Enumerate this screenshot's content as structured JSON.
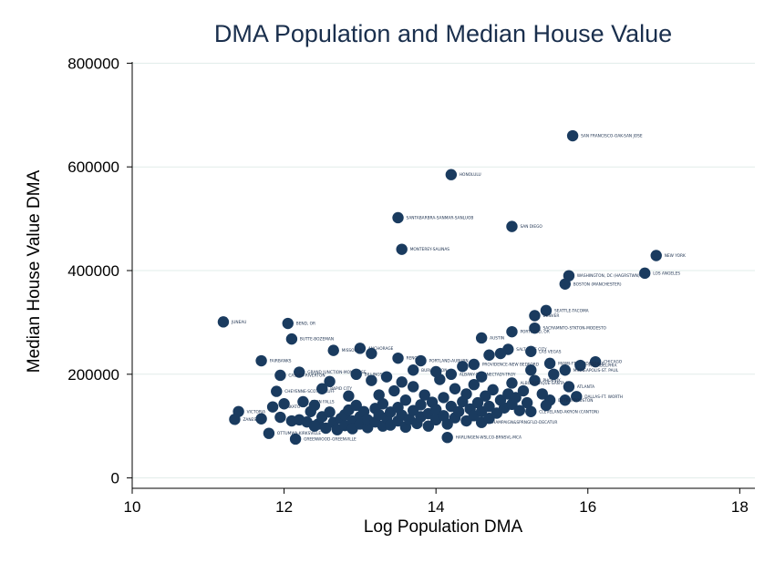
{
  "chart_data": {
    "type": "scatter",
    "title": "DMA Population and Median House Value",
    "xlabel": "Log Population DMA",
    "ylabel": "Median House Value DMA",
    "xlim": [
      10,
      18.2
    ],
    "ylim": [
      -20000,
      820000
    ],
    "xticks": [
      10,
      12,
      14,
      16,
      18
    ],
    "yticks": [
      0,
      200000,
      400000,
      600000,
      800000
    ],
    "grid": "horizontal",
    "colors": {
      "marker": "#1a3b5f",
      "text": "#1a2f4d",
      "grid": "#e1ece9"
    },
    "points": [
      {
        "x": 15.8,
        "y": 660000,
        "label": "SAN FRANCISCO-OAK-SAN JOSE"
      },
      {
        "x": 14.2,
        "y": 585000,
        "label": "HONOLULU"
      },
      {
        "x": 13.5,
        "y": 502000,
        "label": "SANTABARBRA-SANMAR-SANLUOB"
      },
      {
        "x": 15.0,
        "y": 485000,
        "label": "SAN DIEGO"
      },
      {
        "x": 13.55,
        "y": 441000,
        "label": "MONTEREY-SALINAS"
      },
      {
        "x": 16.9,
        "y": 429000,
        "label": "NEW YORK"
      },
      {
        "x": 16.75,
        "y": 395000,
        "label": "LOS ANGELES"
      },
      {
        "x": 15.75,
        "y": 390000,
        "label": "WASHINGTON, DC (HAGRSTWN)"
      },
      {
        "x": 15.7,
        "y": 374000,
        "label": "BOSTON (MANCHESTER)"
      },
      {
        "x": 15.45,
        "y": 323000,
        "label": "SEATTLE-TACOMA"
      },
      {
        "x": 15.3,
        "y": 313000,
        "label": "DENVER"
      },
      {
        "x": 11.2,
        "y": 301000,
        "label": "JUNEAU"
      },
      {
        "x": 12.05,
        "y": 298000,
        "label": "BEND, OR"
      },
      {
        "x": 15.3,
        "y": 289000,
        "label": "SACRAMNTO-STKTON-MODESTO"
      },
      {
        "x": 15.0,
        "y": 282000,
        "label": "PORTLAND, OR"
      },
      {
        "x": 12.1,
        "y": 268000,
        "label": "BUTTE-BOZEMAN"
      },
      {
        "x": 14.6,
        "y": 270000,
        "label": "AUSTIN"
      },
      {
        "x": 13.0,
        "y": 250000,
        "label": "ANCHORAGE"
      },
      {
        "x": 12.65,
        "y": 246000,
        "label": "MISSOULA"
      },
      {
        "x": 14.95,
        "y": 248000,
        "label": "SALT LAKE CITY"
      },
      {
        "x": 15.25,
        "y": 244000,
        "label": "LAS VEGAS"
      },
      {
        "x": 11.7,
        "y": 226000,
        "label": "FAIRBANKS"
      },
      {
        "x": 16.1,
        "y": 224000,
        "label": "CHICAGO"
      },
      {
        "x": 15.5,
        "y": 221000,
        "label": "MIAMI-FT. LAUDERDALE"
      },
      {
        "x": 15.9,
        "y": 217000,
        "label": "PHILADELPHIA"
      },
      {
        "x": 15.7,
        "y": 208000,
        "label": "MINNEAPOLIS-ST. PAUL"
      },
      {
        "x": 13.8,
        "y": 226000,
        "label": "PORTLAND-AUBURN"
      },
      {
        "x": 14.5,
        "y": 219000,
        "label": "PROVIDENCE-NEW BEDFORD"
      },
      {
        "x": 13.5,
        "y": 231000,
        "label": "RENO"
      },
      {
        "x": 14.2,
        "y": 200000,
        "label": "ALBANY-SCHENECTADY-TROY"
      },
      {
        "x": 13.7,
        "y": 208000,
        "label": "BURLINGTON"
      },
      {
        "x": 12.2,
        "y": 204000,
        "label": "GRAND JUNCTION-MONTROSE"
      },
      {
        "x": 11.95,
        "y": 198000,
        "label": "CASPER-RIVERTON"
      },
      {
        "x": 12.95,
        "y": 200000,
        "label": "BILLINGS"
      },
      {
        "x": 15.3,
        "y": 188000,
        "label": "PHOENIX"
      },
      {
        "x": 15.0,
        "y": 183000,
        "label": "ALBUQUERQUE-SANTA FE"
      },
      {
        "x": 15.75,
        "y": 176000,
        "label": "ATLANTA"
      },
      {
        "x": 11.9,
        "y": 167000,
        "label": "CHEYENNE-SCOTTSBLUFF"
      },
      {
        "x": 12.5,
        "y": 172000,
        "label": "RAPID CITY"
      },
      {
        "x": 15.85,
        "y": 157000,
        "label": "DALLAS-FT. WORTH"
      },
      {
        "x": 15.7,
        "y": 150000,
        "label": "HOUSTON"
      },
      {
        "x": 15.5,
        "y": 150000,
        "label": "DETROIT"
      },
      {
        "x": 12.25,
        "y": 147000,
        "label": "TWIN FALLS"
      },
      {
        "x": 11.85,
        "y": 137000,
        "label": "MANKATO"
      },
      {
        "x": 11.4,
        "y": 128000,
        "label": "VICTORIA"
      },
      {
        "x": 15.25,
        "y": 128000,
        "label": "CLEVELAND-AKRON (CANTON)"
      },
      {
        "x": 11.35,
        "y": 113000,
        "label": "ZANESVILLE"
      },
      {
        "x": 14.6,
        "y": 107000,
        "label": "CHAMPAIGN&SPRNGFLD-DECATUR"
      },
      {
        "x": 11.8,
        "y": 86000,
        "label": "OTTUMWA-KIRKSVILLE"
      },
      {
        "x": 12.15,
        "y": 75000,
        "label": "GREENWOOD-GREENVILLE"
      },
      {
        "x": 14.15,
        "y": 78000,
        "label": "HARLINGEN-WSLCO-BRNSVL-MCA"
      },
      {
        "x": 11.7,
        "y": 114000,
        "label": ""
      },
      {
        "x": 11.95,
        "y": 117000,
        "label": ""
      },
      {
        "x": 12.1,
        "y": 110000,
        "label": ""
      },
      {
        "x": 12.2,
        "y": 112000,
        "label": ""
      },
      {
        "x": 12.3,
        "y": 108000,
        "label": ""
      },
      {
        "x": 12.45,
        "y": 104000,
        "label": ""
      },
      {
        "x": 12.5,
        "y": 118000,
        "label": ""
      },
      {
        "x": 12.55,
        "y": 96000,
        "label": ""
      },
      {
        "x": 12.6,
        "y": 127000,
        "label": ""
      },
      {
        "x": 12.65,
        "y": 107000,
        "label": ""
      },
      {
        "x": 12.7,
        "y": 93000,
        "label": ""
      },
      {
        "x": 12.75,
        "y": 115000,
        "label": ""
      },
      {
        "x": 12.8,
        "y": 122000,
        "label": ""
      },
      {
        "x": 12.8,
        "y": 101000,
        "label": ""
      },
      {
        "x": 12.85,
        "y": 131000,
        "label": ""
      },
      {
        "x": 12.9,
        "y": 110000,
        "label": ""
      },
      {
        "x": 12.9,
        "y": 95000,
        "label": ""
      },
      {
        "x": 12.95,
        "y": 140000,
        "label": ""
      },
      {
        "x": 13.0,
        "y": 118000,
        "label": ""
      },
      {
        "x": 13.0,
        "y": 104000,
        "label": ""
      },
      {
        "x": 13.05,
        "y": 128000,
        "label": ""
      },
      {
        "x": 13.1,
        "y": 97000,
        "label": ""
      },
      {
        "x": 13.1,
        "y": 112000,
        "label": ""
      },
      {
        "x": 13.15,
        "y": 188000,
        "label": ""
      },
      {
        "x": 13.2,
        "y": 134000,
        "label": ""
      },
      {
        "x": 13.2,
        "y": 108000,
        "label": ""
      },
      {
        "x": 13.25,
        "y": 122000,
        "label": ""
      },
      {
        "x": 13.3,
        "y": 100000,
        "label": ""
      },
      {
        "x": 13.3,
        "y": 143000,
        "label": ""
      },
      {
        "x": 13.35,
        "y": 116000,
        "label": ""
      },
      {
        "x": 13.4,
        "y": 127000,
        "label": ""
      },
      {
        "x": 13.4,
        "y": 102000,
        "label": ""
      },
      {
        "x": 13.45,
        "y": 168000,
        "label": ""
      },
      {
        "x": 13.5,
        "y": 110000,
        "label": ""
      },
      {
        "x": 13.5,
        "y": 136000,
        "label": ""
      },
      {
        "x": 13.55,
        "y": 121000,
        "label": ""
      },
      {
        "x": 13.6,
        "y": 150000,
        "label": ""
      },
      {
        "x": 13.6,
        "y": 98000,
        "label": ""
      },
      {
        "x": 13.65,
        "y": 113000,
        "label": ""
      },
      {
        "x": 13.7,
        "y": 130000,
        "label": ""
      },
      {
        "x": 13.7,
        "y": 176000,
        "label": ""
      },
      {
        "x": 13.75,
        "y": 105000,
        "label": ""
      },
      {
        "x": 13.8,
        "y": 141000,
        "label": ""
      },
      {
        "x": 13.8,
        "y": 118000,
        "label": ""
      },
      {
        "x": 13.85,
        "y": 160000,
        "label": ""
      },
      {
        "x": 13.9,
        "y": 124000,
        "label": ""
      },
      {
        "x": 13.9,
        "y": 100000,
        "label": ""
      },
      {
        "x": 13.95,
        "y": 146000,
        "label": ""
      },
      {
        "x": 14.0,
        "y": 112000,
        "label": ""
      },
      {
        "x": 14.0,
        "y": 132000,
        "label": ""
      },
      {
        "x": 14.05,
        "y": 190000,
        "label": ""
      },
      {
        "x": 14.1,
        "y": 120000,
        "label": ""
      },
      {
        "x": 14.1,
        "y": 155000,
        "label": ""
      },
      {
        "x": 14.15,
        "y": 104000,
        "label": ""
      },
      {
        "x": 14.2,
        "y": 138000,
        "label": ""
      },
      {
        "x": 14.25,
        "y": 116000,
        "label": ""
      },
      {
        "x": 14.25,
        "y": 172000,
        "label": ""
      },
      {
        "x": 14.3,
        "y": 128000,
        "label": ""
      },
      {
        "x": 14.35,
        "y": 147000,
        "label": ""
      },
      {
        "x": 14.4,
        "y": 110000,
        "label": ""
      },
      {
        "x": 14.4,
        "y": 162000,
        "label": ""
      },
      {
        "x": 14.45,
        "y": 133000,
        "label": ""
      },
      {
        "x": 14.5,
        "y": 120000,
        "label": ""
      },
      {
        "x": 14.5,
        "y": 180000,
        "label": ""
      },
      {
        "x": 14.55,
        "y": 145000,
        "label": ""
      },
      {
        "x": 14.6,
        "y": 128000,
        "label": ""
      },
      {
        "x": 14.65,
        "y": 158000,
        "label": ""
      },
      {
        "x": 14.7,
        "y": 115000,
        "label": ""
      },
      {
        "x": 14.7,
        "y": 138000,
        "label": ""
      },
      {
        "x": 14.75,
        "y": 170000,
        "label": ""
      },
      {
        "x": 14.8,
        "y": 125000,
        "label": ""
      },
      {
        "x": 14.85,
        "y": 150000,
        "label": ""
      },
      {
        "x": 14.9,
        "y": 135000,
        "label": ""
      },
      {
        "x": 14.95,
        "y": 162000,
        "label": ""
      },
      {
        "x": 15.0,
        "y": 142000,
        "label": ""
      },
      {
        "x": 15.05,
        "y": 155000,
        "label": ""
      },
      {
        "x": 15.1,
        "y": 130000,
        "label": ""
      },
      {
        "x": 15.15,
        "y": 168000,
        "label": ""
      },
      {
        "x": 15.2,
        "y": 145000,
        "label": ""
      },
      {
        "x": 15.4,
        "y": 162000,
        "label": ""
      },
      {
        "x": 15.45,
        "y": 140000,
        "label": ""
      },
      {
        "x": 14.7,
        "y": 237000,
        "label": ""
      },
      {
        "x": 14.85,
        "y": 240000,
        "label": ""
      },
      {
        "x": 14.35,
        "y": 215000,
        "label": ""
      },
      {
        "x": 13.35,
        "y": 195000,
        "label": ""
      },
      {
        "x": 12.6,
        "y": 186000,
        "label": ""
      },
      {
        "x": 13.25,
        "y": 160000,
        "label": ""
      },
      {
        "x": 12.85,
        "y": 158000,
        "label": ""
      },
      {
        "x": 13.55,
        "y": 185000,
        "label": ""
      },
      {
        "x": 14.0,
        "y": 205000,
        "label": ""
      },
      {
        "x": 14.6,
        "y": 195000,
        "label": ""
      },
      {
        "x": 15.55,
        "y": 200000,
        "label": ""
      },
      {
        "x": 15.25,
        "y": 208000,
        "label": ""
      },
      {
        "x": 12.35,
        "y": 128000,
        "label": ""
      },
      {
        "x": 12.4,
        "y": 140000,
        "label": ""
      },
      {
        "x": 12.0,
        "y": 143000,
        "label": ""
      },
      {
        "x": 13.15,
        "y": 240000,
        "label": ""
      },
      {
        "x": 12.4,
        "y": 100000,
        "label": ""
      }
    ]
  }
}
